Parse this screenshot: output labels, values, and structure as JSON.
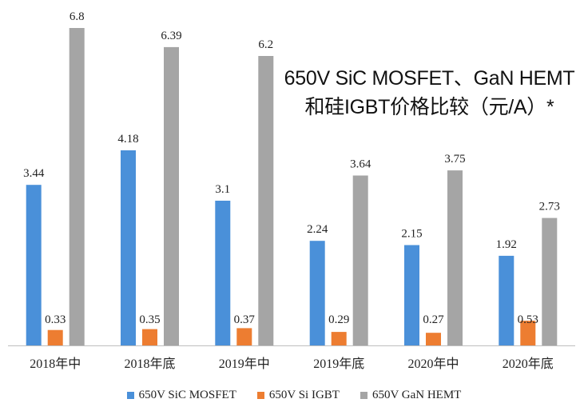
{
  "chart_data": {
    "type": "bar",
    "title_line1": "650V SiC MOSFET、GaN HEMT",
    "title_line2": "和硅IGBT价格比较（元/A）*",
    "categories": [
      "2018年中",
      "2018年底",
      "2019年中",
      "2019年底",
      "2020年中",
      "2020年底"
    ],
    "series": [
      {
        "name": "650V SiC MOSFET",
        "color": "#4a90d9",
        "values": [
          3.44,
          4.18,
          3.1,
          2.24,
          2.15,
          1.92
        ]
      },
      {
        "name": "650V Si IGBT",
        "color": "#ed7d31",
        "values": [
          0.33,
          0.35,
          0.37,
          0.29,
          0.27,
          0.53
        ]
      },
      {
        "name": "650V GaN HEMT",
        "color": "#a5a5a5",
        "values": [
          6.8,
          6.39,
          6.2,
          3.64,
          3.75,
          2.73
        ]
      }
    ],
    "value_labels": [
      [
        "3.44",
        "4.18",
        "3.1",
        "2.24",
        "2.15",
        "1.92"
      ],
      [
        "0.33",
        "0.35",
        "0.37",
        "0.29",
        "0.27",
        "0.53"
      ],
      [
        "6.8",
        "6.39",
        "6.2",
        "3.64",
        "3.75",
        "2.73"
      ]
    ],
    "ylim": [
      0,
      7
    ],
    "xlabel": "",
    "ylabel": "",
    "grid": false,
    "legend_position": "bottom"
  }
}
